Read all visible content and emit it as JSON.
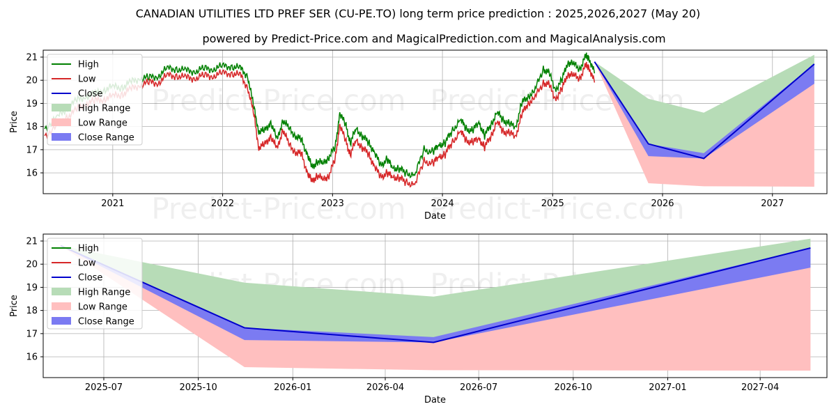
{
  "title": "CANADIAN UTILITIES LTD PREF SER (CU-PE.TO) long term price prediction : 2025,2026,2027 (May 20)",
  "subtitle": "powered by Predict-Price.com and MagicalPrediction.com and MagicalAnalysis.com",
  "watermark": "Predict-Price.com",
  "colors": {
    "high": "#008000",
    "low": "#d62728",
    "close": "#0000cc",
    "high_range": "#b7dcb7",
    "low_range": "#ffbfbf",
    "close_range": "#7b7bf2"
  },
  "legend": [
    "High",
    "Low",
    "Close",
    "High Range",
    "Low Range",
    "Close Range"
  ],
  "chart_data": [
    {
      "type": "line",
      "xlabel": "Date",
      "ylabel": "Price",
      "xlim": [
        "2020-05-15",
        "2027-07-01"
      ],
      "ylim": [
        15.1,
        21.3
      ],
      "x_ticks": [
        "2021-01-01",
        "2022-01-01",
        "2023-01-01",
        "2024-01-01",
        "2025-01-01",
        "2026-01-01",
        "2027-01-01"
      ],
      "x_tick_labels": [
        "2021",
        "2022",
        "2023",
        "2024",
        "2025",
        "2026",
        "2027"
      ],
      "y_ticks": [
        16,
        17,
        18,
        19,
        20,
        21
      ],
      "grid": true,
      "legend_position": "upper-left",
      "history": {
        "dates": [
          "2020-05-20",
          "2020-07-01",
          "2020-08-01",
          "2020-09-01",
          "2020-10-01",
          "2020-11-01",
          "2020-12-01",
          "2021-01-01",
          "2021-02-01",
          "2021-03-01",
          "2021-04-01",
          "2021-05-01",
          "2021-06-01",
          "2021-07-01",
          "2021-08-01",
          "2021-09-01",
          "2021-10-01",
          "2021-11-01",
          "2021-12-01",
          "2022-01-01",
          "2022-02-01",
          "2022-03-01",
          "2022-03-25",
          "2022-04-15",
          "2022-05-01",
          "2022-05-20",
          "2022-06-10",
          "2022-07-01",
          "2022-07-20",
          "2022-08-10",
          "2022-09-01",
          "2022-09-20",
          "2022-10-10",
          "2022-10-25",
          "2022-11-10",
          "2022-12-01",
          "2022-12-20",
          "2023-01-10",
          "2023-01-25",
          "2023-02-15",
          "2023-03-01",
          "2023-03-20",
          "2023-04-10",
          "2023-05-01",
          "2023-05-20",
          "2023-06-10",
          "2023-07-01",
          "2023-07-20",
          "2023-08-10",
          "2023-09-01",
          "2023-10-01",
          "2023-11-01",
          "2023-12-01",
          "2023-12-20",
          "2024-01-10",
          "2024-02-01",
          "2024-03-01",
          "2024-03-20",
          "2024-04-10",
          "2024-05-01",
          "2024-05-20",
          "2024-06-10",
          "2024-07-01",
          "2024-07-20",
          "2024-08-10",
          "2024-09-01",
          "2024-09-20",
          "2024-10-10",
          "2024-11-01",
          "2024-12-01",
          "2024-12-20",
          "2025-01-10",
          "2025-02-01",
          "2025-02-20",
          "2025-03-10",
          "2025-04-01",
          "2025-04-20",
          "2025-05-01",
          "2025-05-20"
        ],
        "high": [
          17.9,
          18.4,
          18.8,
          19.1,
          19.3,
          19.4,
          19.6,
          19.7,
          19.7,
          19.9,
          20.1,
          20.1,
          20.2,
          20.5,
          20.5,
          20.4,
          20.4,
          20.5,
          20.5,
          20.6,
          20.6,
          20.5,
          20.2,
          18.8,
          17.8,
          17.8,
          18.2,
          17.4,
          18.3,
          17.9,
          17.6,
          17.4,
          16.8,
          16.2,
          16.5,
          16.4,
          16.7,
          17.1,
          18.6,
          18.0,
          17.3,
          17.9,
          17.6,
          17.3,
          16.9,
          16.3,
          16.6,
          16.2,
          16.2,
          16.0,
          15.9,
          17.0,
          16.9,
          17.2,
          17.3,
          17.8,
          18.3,
          17.9,
          17.8,
          18.2,
          17.6,
          18.1,
          18.6,
          18.3,
          18.1,
          18.0,
          19.0,
          19.3,
          19.5,
          20.5,
          20.3,
          19.6,
          20.0,
          20.8,
          20.7,
          20.5,
          21.0,
          21.0,
          20.3
        ],
        "low": [
          17.6,
          18.0,
          18.4,
          18.7,
          19.0,
          19.1,
          19.2,
          19.3,
          19.4,
          19.6,
          19.8,
          19.9,
          19.9,
          20.2,
          20.2,
          20.1,
          20.1,
          20.2,
          20.2,
          20.3,
          20.3,
          20.2,
          19.7,
          18.5,
          17.1,
          17.2,
          17.6,
          17.0,
          17.9,
          17.2,
          16.9,
          16.8,
          16.0,
          15.6,
          15.9,
          15.7,
          15.9,
          16.6,
          18.1,
          17.3,
          16.8,
          17.4,
          17.1,
          16.8,
          16.3,
          15.8,
          16.0,
          15.8,
          15.8,
          15.6,
          15.5,
          16.5,
          16.4,
          16.7,
          16.8,
          17.3,
          17.8,
          17.4,
          17.3,
          17.5,
          17.1,
          17.6,
          18.2,
          17.8,
          17.7,
          17.6,
          18.5,
          19.0,
          19.2,
          19.9,
          19.8,
          19.2,
          19.6,
          20.3,
          20.2,
          20.1,
          20.6,
          20.6,
          19.9
        ]
      },
      "forecast": {
        "dates": [
          "2025-05-20",
          "2025-11-15",
          "2026-05-18",
          "2027-05-20"
        ],
        "close": [
          20.8,
          17.25,
          16.62,
          20.7
        ],
        "high_range": [
          [
            20.8,
            20.8
          ],
          [
            17.25,
            19.2
          ],
          [
            16.62,
            18.6
          ],
          [
            19.8,
            21.1
          ]
        ],
        "low_range": [
          [
            20.8,
            20.8
          ],
          [
            15.55,
            17.25
          ],
          [
            15.42,
            16.62
          ],
          [
            15.4,
            19.9
          ]
        ],
        "close_range": [
          [
            20.8,
            20.8
          ],
          [
            16.72,
            17.25
          ],
          [
            16.62,
            16.85
          ],
          [
            19.85,
            20.7
          ]
        ]
      }
    },
    {
      "type": "line",
      "xlabel": "Date",
      "ylabel": "Price",
      "xlim": [
        "2025-05-03",
        "2027-06-05"
      ],
      "ylim": [
        15.1,
        21.3
      ],
      "x_ticks": [
        "2025-07-01",
        "2025-10-01",
        "2026-01-01",
        "2026-04-01",
        "2026-07-01",
        "2026-10-01",
        "2027-01-01",
        "2027-04-01"
      ],
      "x_tick_labels": [
        "2025-07",
        "2025-10",
        "2026-01",
        "2026-04",
        "2026-07",
        "2026-10",
        "2027-01",
        "2027-04"
      ],
      "y_ticks": [
        16,
        17,
        18,
        19,
        20,
        21
      ],
      "grid": true,
      "legend_position": "upper-left",
      "forecast_ref": "same forecast as chart 1"
    }
  ]
}
